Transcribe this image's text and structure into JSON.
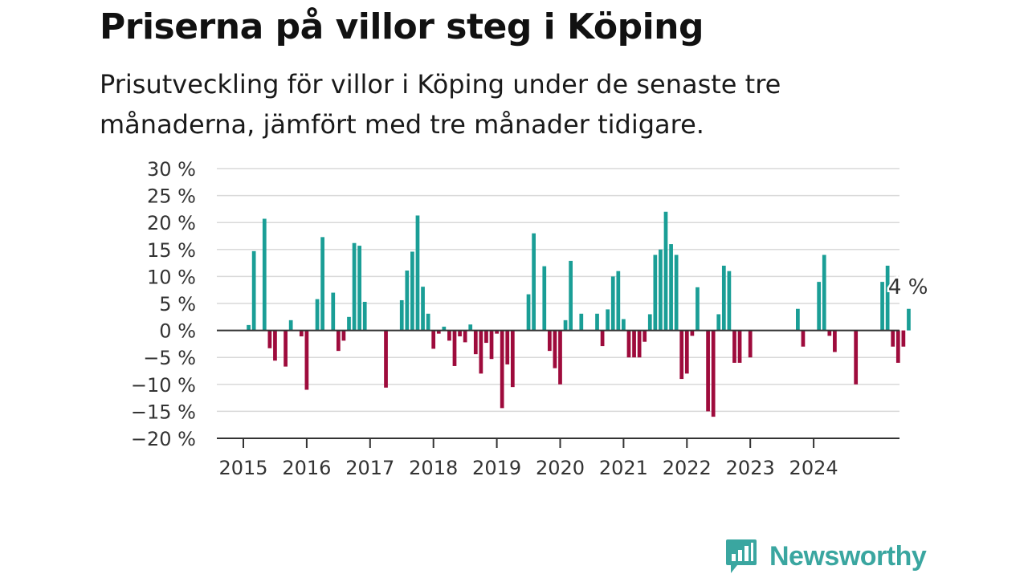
{
  "title": "Priserna på villor steg i Köping",
  "subtitle": "Prisutveckling för villor i Köping under de senaste tre månaderna, jämfört med tre månader tidigare.",
  "brand": {
    "name": "Newsworthy",
    "color": "#3aa6a0",
    "icon": "bar-chart-speech-bubble-icon"
  },
  "chart_data": {
    "type": "bar",
    "title": "Priserna på villor steg i Köping",
    "subtitle": "Prisutveckling för villor i Köping under de senaste tre månaderna, jämfört med tre månader tidigare.",
    "xlabel": "",
    "ylabel": "",
    "ylim": [
      -20,
      30
    ],
    "y_ticks": [
      30,
      25,
      20,
      15,
      10,
      5,
      0,
      -5,
      -10,
      -15,
      -20
    ],
    "y_tick_labels": [
      "30 %",
      "25 %",
      "20 %",
      "15 %",
      "10 %",
      "5 %",
      "0 %",
      "−5 %",
      "−10 %",
      "−15 %",
      "−20 %"
    ],
    "x_ticks": [
      "2015",
      "2016",
      "2017",
      "2018",
      "2019",
      "2020",
      "2021",
      "2022",
      "2023",
      "2024"
    ],
    "x_start": "2015-01",
    "grid": true,
    "colors": {
      "positive": "#1a9e96",
      "negative": "#9e0b3c"
    },
    "annotation": {
      "label": "4 %"
    },
    "values": [
      0,
      1,
      14.7,
      0,
      20.7,
      -3.3,
      -5.6,
      0,
      -6.7,
      1.9,
      0,
      -1.1,
      -11,
      0,
      5.8,
      17.3,
      0,
      7,
      -3.8,
      -1.9,
      2.5,
      16.2,
      15.7,
      5.3,
      0,
      0,
      0,
      -10.6,
      0,
      0,
      5.6,
      11.1,
      14.6,
      21.3,
      8.1,
      3.1,
      -3.4,
      -0.6,
      0.7,
      -1.9,
      -6.6,
      -1.1,
      -2.2,
      1.1,
      -4.4,
      -8,
      -2.3,
      -5.3,
      -0.6,
      -14.4,
      -6.3,
      -10.5,
      0,
      0,
      6.7,
      18,
      0,
      11.9,
      -3.8,
      -7,
      -10,
      1.9,
      12.9,
      0,
      3.1,
      0,
      0,
      3.1,
      -2.9,
      3.9,
      10,
      11,
      2.1,
      -5,
      -5,
      -5,
      -2.1,
      3,
      14,
      15,
      22,
      16,
      14,
      -9,
      -8,
      -1,
      8,
      0,
      -15,
      -16,
      3,
      12,
      11,
      -6,
      -6,
      0,
      -5,
      0,
      0,
      0,
      0,
      0,
      0,
      0,
      0,
      4,
      -3,
      0,
      0,
      9,
      14,
      -1,
      -4,
      0,
      0,
      0,
      -10,
      0,
      0,
      0,
      0,
      9,
      12,
      -3,
      -6,
      -3,
      4
    ]
  }
}
